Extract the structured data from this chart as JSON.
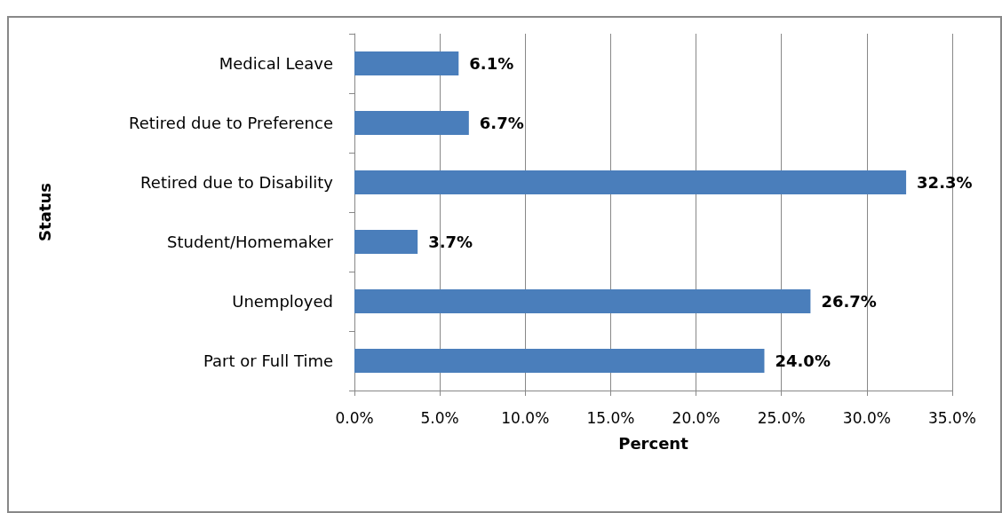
{
  "chart_data": {
    "type": "bar",
    "orientation": "horizontal",
    "xlabel": "Percent",
    "ylabel": "Status",
    "categories": [
      "Medical Leave",
      "Retired due to Preference",
      "Retired due to Disability",
      "Student/Homemaker",
      "Unemployed",
      "Part or Full Time"
    ],
    "values": [
      6.1,
      6.7,
      32.3,
      3.7,
      26.7,
      24.0
    ],
    "value_labels": [
      "6.1%",
      "6.7%",
      "32.3%",
      "3.7%",
      "26.7%",
      "24.0%"
    ],
    "color": "#4a7ebb",
    "xlim": [
      0,
      35
    ],
    "xticks": [
      {
        "value": 0,
        "label": "0.0%"
      },
      {
        "value": 5,
        "label": "5.0%"
      },
      {
        "value": 10,
        "label": "10.0%"
      },
      {
        "value": 15,
        "label": "15.0%"
      },
      {
        "value": 20,
        "label": "20.0%"
      },
      {
        "value": 25,
        "label": "25.0%"
      },
      {
        "value": 30,
        "label": "30.0%"
      },
      {
        "value": 35,
        "label": "35.0%"
      }
    ],
    "grid": "x"
  }
}
